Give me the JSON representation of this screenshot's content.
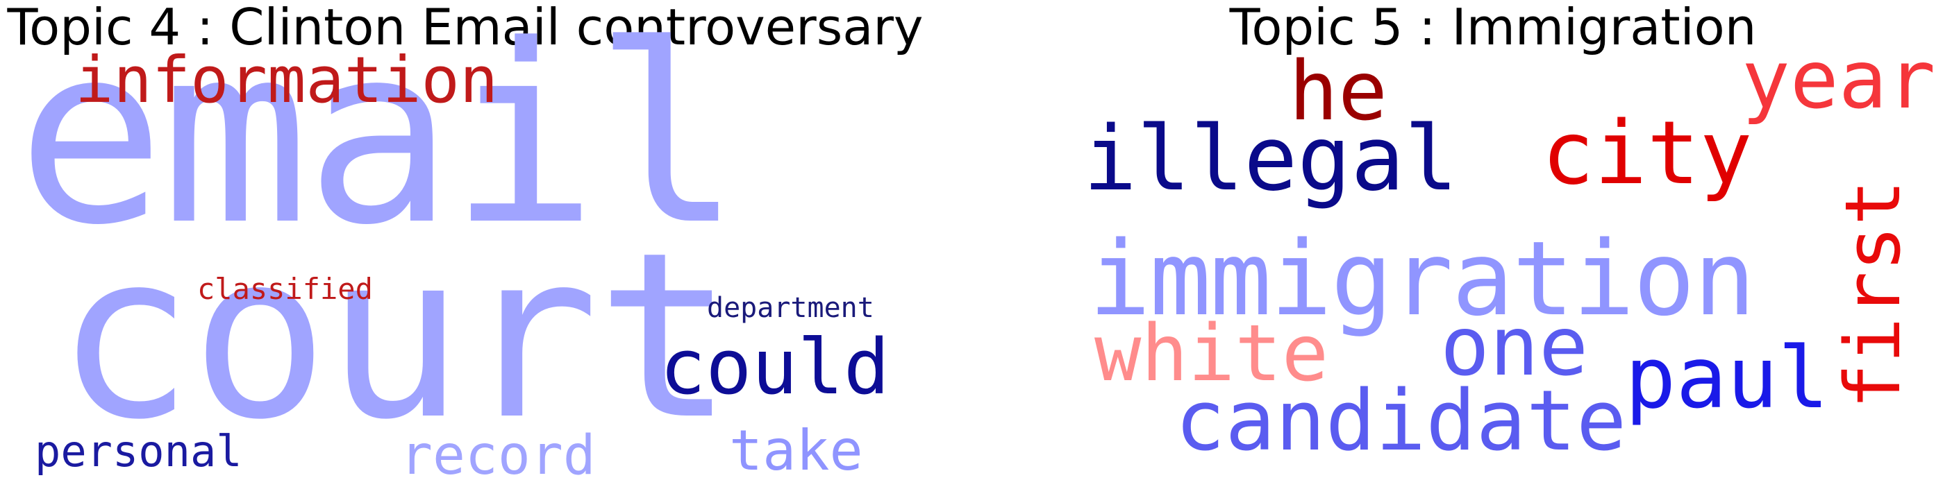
{
  "figure": {
    "panels": [
      {
        "title": "Topic 4 : Clinton Email controversary",
        "words": [
          {
            "text": "email",
            "color": "#a0a4ff"
          },
          {
            "text": "court",
            "color": "#a0a4ff"
          },
          {
            "text": "information",
            "color": "#c01a1a"
          },
          {
            "text": "could",
            "color": "#0d0d96"
          },
          {
            "text": "classified",
            "color": "#c01a1a"
          },
          {
            "text": "department",
            "color": "#1a1a7a"
          },
          {
            "text": "personal",
            "color": "#1a1aa0"
          },
          {
            "text": "record",
            "color": "#a0a4ff"
          },
          {
            "text": "take",
            "color": "#8f94ff"
          }
        ]
      },
      {
        "title": "Topic 5 : Immigration",
        "words": [
          {
            "text": "he",
            "color": "#9a0000"
          },
          {
            "text": "year",
            "color": "#f5363b"
          },
          {
            "text": "illegal",
            "color": "#0a0a8a"
          },
          {
            "text": "city",
            "color": "#e00000"
          },
          {
            "text": "first",
            "color": "#e80a0a"
          },
          {
            "text": "immigration",
            "color": "#9095ff"
          },
          {
            "text": "white",
            "color": "#ff8c8c"
          },
          {
            "text": "one",
            "color": "#5a5cf0"
          },
          {
            "text": "paul",
            "color": "#1a1ae8"
          },
          {
            "text": "candidate",
            "color": "#5a5cf0"
          }
        ]
      }
    ]
  }
}
